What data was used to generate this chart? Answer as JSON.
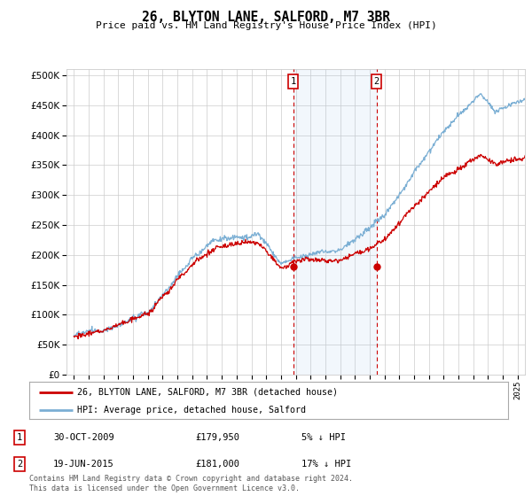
{
  "title": "26, BLYTON LANE, SALFORD, M7 3BR",
  "subtitle": "Price paid vs. HM Land Registry's House Price Index (HPI)",
  "ytick_vals": [
    0,
    50000,
    100000,
    150000,
    200000,
    250000,
    300000,
    350000,
    400000,
    450000,
    500000
  ],
  "ylim": [
    0,
    510000
  ],
  "xlim_start": 1994.5,
  "xlim_end": 2025.5,
  "hpi_color": "#7bafd4",
  "price_color": "#cc0000",
  "sale1_x": 2009.83,
  "sale1_y": 179950,
  "sale2_x": 2015.46,
  "sale2_y": 181000,
  "sale1_label": "30-OCT-2009",
  "sale1_price": "£179,950",
  "sale1_note": "5% ↓ HPI",
  "sale2_label": "19-JUN-2015",
  "sale2_price": "£181,000",
  "sale2_note": "17% ↓ HPI",
  "legend_line1": "26, BLYTON LANE, SALFORD, M7 3BR (detached house)",
  "legend_line2": "HPI: Average price, detached house, Salford",
  "footer": "Contains HM Land Registry data © Crown copyright and database right 2024.\nThis data is licensed under the Open Government Licence v3.0.",
  "xtick_years": [
    1995,
    1996,
    1997,
    1998,
    1999,
    2000,
    2001,
    2002,
    2003,
    2004,
    2005,
    2006,
    2007,
    2008,
    2009,
    2010,
    2011,
    2012,
    2013,
    2014,
    2015,
    2016,
    2017,
    2018,
    2019,
    2020,
    2021,
    2022,
    2023,
    2024,
    2025
  ]
}
